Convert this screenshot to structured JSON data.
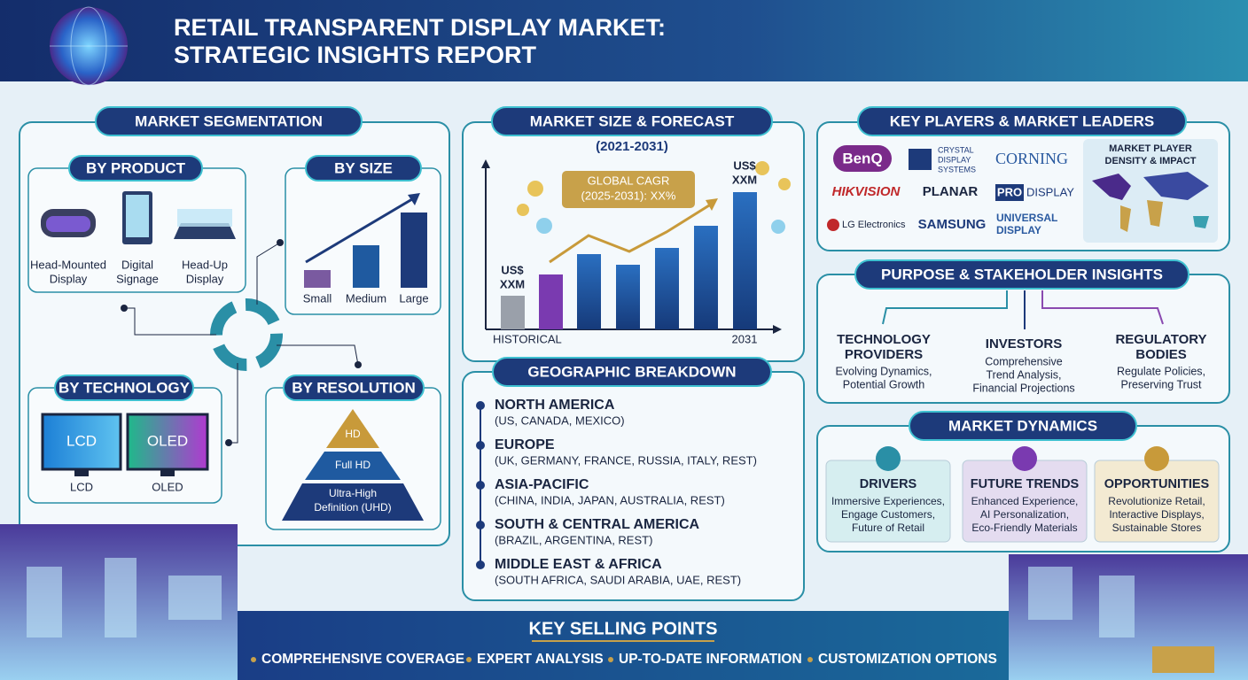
{
  "header": {
    "title_lines": [
      "RETAIL TRANSPARENT DISPLAY MARKET:",
      "STRATEGIC INSIGHTS REPORT"
    ]
  },
  "segmentation": {
    "title": "MARKET SEGMENTATION",
    "by_product": {
      "title": "BY PRODUCT",
      "items": [
        [
          "Head-Mounted",
          "Display"
        ],
        [
          "Digital",
          "Signage"
        ],
        [
          "Head-Up",
          "Display"
        ]
      ]
    },
    "by_size": {
      "title": "BY SIZE",
      "items": [
        "Small",
        "Medium",
        "Large"
      ]
    },
    "by_technology": {
      "title": "BY TECHNOLOGY",
      "screens": [
        "LCD",
        "OLED"
      ],
      "items": [
        "LCD",
        "OLED"
      ]
    },
    "by_resolution": {
      "title": "BY RESOLUTION",
      "levels": [
        [
          "HD"
        ],
        [
          "Full HD"
        ],
        [
          "Ultra-High",
          "Definition (UHD)"
        ]
      ]
    }
  },
  "forecast": {
    "title": "MARKET SIZE & FORECAST",
    "subtitle": "(2021-2031)",
    "cagr": [
      "GLOBAL CAGR",
      "(2025-2031): XX%"
    ],
    "start_label": [
      "US$",
      "XXM"
    ],
    "end_label": [
      "US$",
      "XXM"
    ],
    "x_start": "HISTORICAL",
    "x_end": "2031"
  },
  "geography": {
    "title": "GEOGRAPHIC BREAKDOWN",
    "regions": [
      {
        "name": "NORTH AMERICA",
        "countries": "(US, CANADA, MEXICO)"
      },
      {
        "name": "EUROPE",
        "countries": "(UK, GERMANY, FRANCE, RUSSIA, ITALY, REST)"
      },
      {
        "name": "ASIA-PACIFIC",
        "countries": "(CHINA, INDIA, JAPAN, AUSTRALIA, REST)"
      },
      {
        "name": "SOUTH & CENTRAL AMERICA",
        "countries": "(BRAZIL, ARGENTINA, REST)"
      },
      {
        "name": "MIDDLE EAST & AFRICA",
        "countries": "(SOUTH AFRICA, SAUDI ARABIA, UAE, REST)"
      }
    ]
  },
  "players": {
    "title": "KEY PLAYERS & MARKET LEADERS",
    "logos": [
      [
        "BenQ"
      ],
      [
        "CRYSTAL",
        "DISPLAY",
        "SYSTEMS"
      ],
      [
        "CORNING"
      ],
      [
        "HIKVISION"
      ],
      [
        "PLANAR"
      ],
      [
        "PRO",
        "DISPLAY"
      ],
      [
        "LG Electronics"
      ],
      [
        "SAMSUNG"
      ],
      [
        "UNIVERSAL",
        "DISPLAY"
      ]
    ],
    "map_title": [
      "MARKET PLAYER",
      "DENSITY & IMPACT"
    ]
  },
  "stakeholders": {
    "title": "PURPOSE & STAKEHOLDER INSIGHTS",
    "groups": [
      {
        "name": [
          "TECHNOLOGY",
          "PROVIDERS"
        ],
        "desc": [
          "Evolving Dynamics,",
          "Potential Growth"
        ]
      },
      {
        "name": [
          "INVESTORS"
        ],
        "desc": [
          "Comprehensive",
          "Trend Analysis,",
          "Financial Projections"
        ]
      },
      {
        "name": [
          "REGULATORY",
          "BODIES"
        ],
        "desc": [
          "Regulate Policies,",
          "Preserving Trust"
        ]
      }
    ]
  },
  "dynamics": {
    "title": "MARKET DYNAMICS",
    "cards": [
      {
        "name": "DRIVERS",
        "desc": [
          "Immersive Experiences,",
          "Engage Customers,",
          "Future of Retail"
        ]
      },
      {
        "name": "FUTURE TRENDS",
        "desc": [
          "Enhanced Experience,",
          "AI Personalization,",
          "Eco-Friendly Materials"
        ]
      },
      {
        "name": "OPPORTUNITIES",
        "desc": [
          "Revolutionize Retail,",
          "Interactive Displays,",
          "Sustainable Stores"
        ]
      }
    ]
  },
  "selling_points": {
    "title": "KEY SELLING POINTS",
    "items": [
      "COMPREHENSIVE COVERAGE",
      "EXPERT ANALYSIS",
      "UP-TO-DATE INFORMATION",
      "CUSTOMIZATION OPTIONS"
    ]
  }
}
